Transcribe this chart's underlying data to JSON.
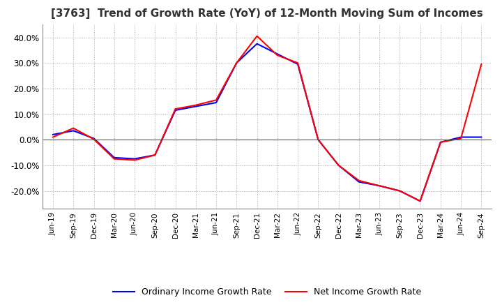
{
  "title": "[3763]  Trend of Growth Rate (YoY) of 12-Month Moving Sum of Incomes",
  "title_fontsize": 11,
  "ylim": [
    -0.27,
    0.45
  ],
  "yticks": [
    -0.2,
    -0.1,
    0.0,
    0.1,
    0.2,
    0.3,
    0.4
  ],
  "background_color": "#ffffff",
  "grid_color": "#aaaaaa",
  "ordinary_color": "#0000ff",
  "net_color": "#ff0000",
  "x_labels": [
    "Jun-19",
    "Sep-19",
    "Dec-19",
    "Mar-20",
    "Jun-20",
    "Sep-20",
    "Dec-20",
    "Mar-21",
    "Jun-21",
    "Sep-21",
    "Dec-21",
    "Mar-22",
    "Jun-22",
    "Sep-22",
    "Dec-22",
    "Mar-23",
    "Jun-23",
    "Sep-23",
    "Dec-23",
    "Mar-24",
    "Jun-24",
    "Sep-24"
  ],
  "ordinary_income_growth": [
    0.02,
    0.035,
    0.005,
    -0.07,
    -0.075,
    -0.06,
    0.115,
    0.13,
    0.145,
    0.3,
    0.375,
    0.335,
    0.295,
    0.0,
    -0.1,
    -0.165,
    -0.18,
    -0.2,
    -0.24,
    -0.01,
    0.01,
    0.01
  ],
  "net_income_growth": [
    0.01,
    0.045,
    0.002,
    -0.075,
    -0.08,
    -0.06,
    0.12,
    0.135,
    0.155,
    0.3,
    0.405,
    0.33,
    0.3,
    0.0,
    -0.1,
    -0.16,
    -0.18,
    -0.2,
    -0.24,
    -0.01,
    0.005,
    0.295
  ],
  "legend_ordinary": "Ordinary Income Growth Rate",
  "legend_net": "Net Income Growth Rate"
}
